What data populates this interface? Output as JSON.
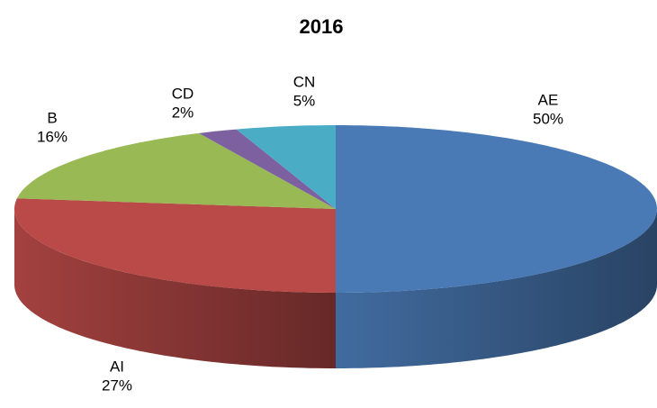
{
  "chart_data": {
    "type": "pie3d",
    "title": "2016",
    "categories": [
      "AE",
      "AI",
      "B",
      "CD",
      "CN"
    ],
    "values": [
      50,
      27,
      16,
      2,
      5
    ],
    "value_labels": [
      "50%",
      "27%",
      "16%",
      "2%",
      "5%"
    ],
    "colors": [
      "#4a7ab5",
      "#b94a48",
      "#98b954",
      "#7d60a0",
      "#4bacc6"
    ],
    "start_angle": 0,
    "direction": "clockwise"
  }
}
